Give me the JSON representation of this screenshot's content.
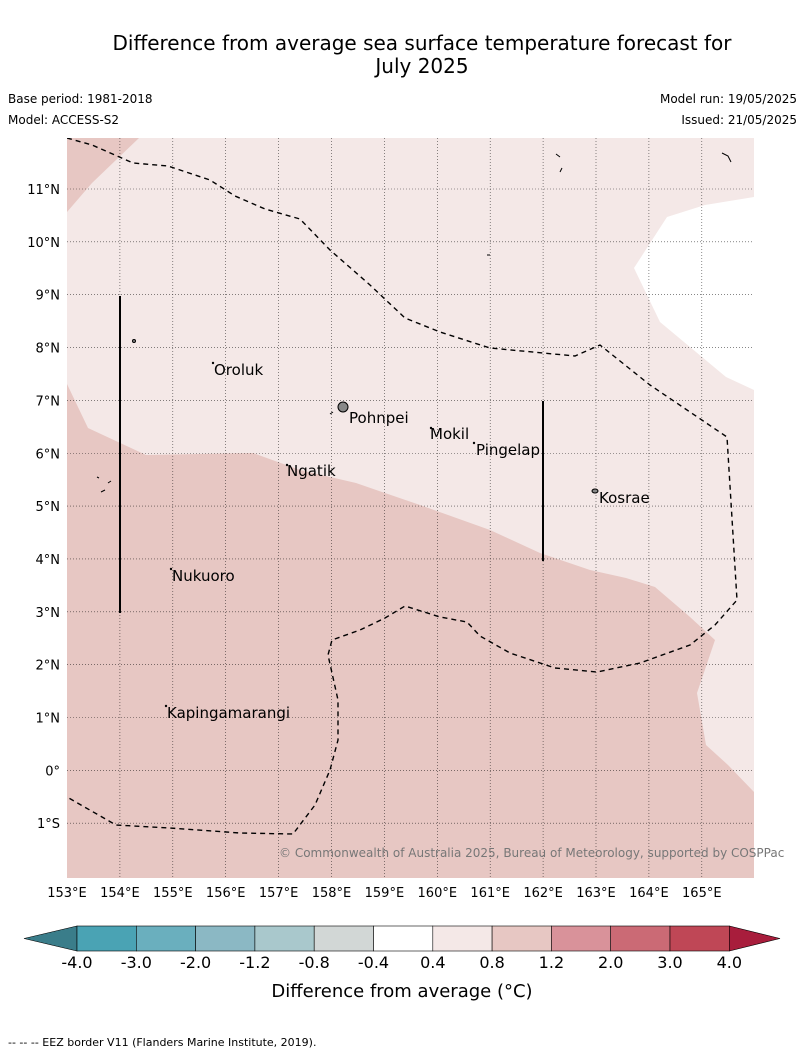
{
  "header": {
    "title_line1": "Difference from average sea surface temperature forecast for",
    "title_line2": "July 2025",
    "base_period": "Base period: 1981-2018",
    "model": "Model: ACCESS-S2",
    "model_run": "Model run: 19/05/2025",
    "issued": "Issued: 21/05/2025"
  },
  "map": {
    "lon_labels": [
      "153°E",
      "154°E",
      "155°E",
      "156°E",
      "157°E",
      "158°E",
      "159°E",
      "160°E",
      "161°E",
      "162°E",
      "163°E",
      "164°E",
      "165°E"
    ],
    "lat_labels": [
      "11°N",
      "10°N",
      "9°N",
      "8°N",
      "7°N",
      "6°N",
      "5°N",
      "4°N",
      "3°N",
      "2°N",
      "1°N",
      "0°",
      "1°S"
    ],
    "places": [
      "Oroluk",
      "Pohnpei",
      "Mokil",
      "Pingelap",
      "Ngatik",
      "Kosrae",
      "Nukuoro",
      "Kapingamarangi"
    ],
    "copyright": "© Commonwealth of Australia 2025, Bureau of Meteorology, supported by COSPPac",
    "colors": {
      "anomaly_0_4_to_0_8": "#f4e8e7",
      "anomaly_0_8_to_1_2": "#e7c7c3",
      "neutral": "#ffffff"
    }
  },
  "colorbar": {
    "title": "Difference from average (°C)",
    "tick_labels": [
      "-4.0",
      "-3.0",
      "-2.0",
      "-1.2",
      "-0.8",
      "-0.4",
      "0.4",
      "0.8",
      "1.2",
      "2.0",
      "3.0",
      "4.0"
    ],
    "colors": [
      "#3a7d8a",
      "#4aa3b4",
      "#6aafbe",
      "#8bb8c4",
      "#a9c8cc",
      "#d2d7d6",
      "#ffffff",
      "#f4e8e7",
      "#e7c7c3",
      "#d9929a",
      "#cb6a75",
      "#bf4756",
      "#a81d3c"
    ]
  },
  "footer": {
    "eez_note": "--  --  -- EEZ border V11 (Flanders Marine Institute, 2019)."
  }
}
